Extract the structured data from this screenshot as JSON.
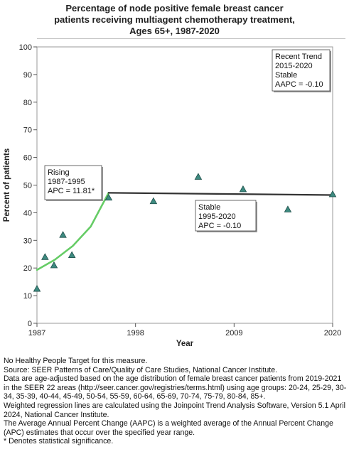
{
  "chart_data": {
    "type": "line",
    "title_lines": [
      "Percentage of node positive female breast cancer",
      "patients receiving multiagent chemotherapy treatment,",
      "Ages 65+,  1987-2020"
    ],
    "xlabel": "Year",
    "ylabel": "Percent of patients",
    "xlim": [
      1987,
      2020
    ],
    "ylim": [
      0,
      100
    ],
    "x_ticks": [
      1987,
      1998,
      2009,
      2020
    ],
    "y_ticks": [
      0,
      10,
      20,
      30,
      40,
      50,
      60,
      70,
      80,
      90,
      100
    ],
    "grid": false,
    "observed_points": [
      {
        "x": 1987.0,
        "y": 12.5
      },
      {
        "x": 1987.9,
        "y": 24.0
      },
      {
        "x": 1988.9,
        "y": 21.0
      },
      {
        "x": 1989.9,
        "y": 32.0
      },
      {
        "x": 1990.9,
        "y": 24.7
      },
      {
        "x": 1995.0,
        "y": 45.5
      },
      {
        "x": 2000.0,
        "y": 44.2
      },
      {
        "x": 2005.0,
        "y": 53.0
      },
      {
        "x": 2010.0,
        "y": 48.5
      },
      {
        "x": 2015.0,
        "y": 41.2
      },
      {
        "x": 2020.0,
        "y": 46.7
      }
    ],
    "segments": [
      {
        "color": "#66cc66",
        "points": [
          [
            1987,
            19.3
          ],
          [
            1989,
            23.0
          ],
          [
            1991,
            28.0
          ],
          [
            1993,
            35.0
          ],
          [
            1995,
            47.2
          ]
        ]
      },
      {
        "color": "#333333",
        "points": [
          [
            1995,
            47.2
          ],
          [
            2020,
            46.4
          ]
        ]
      }
    ],
    "annotations": [
      {
        "lines": [
          "Rising",
          "1987-1995",
          "APC = 11.81*"
        ]
      },
      {
        "lines": [
          "Stable",
          "1995-2020",
          "APC = -0.10"
        ]
      },
      {
        "lines": [
          "Recent Trend",
          "2015-2020",
          "Stable",
          "AAPC = -0.10"
        ]
      }
    ],
    "marker_color": "#3d8a80"
  },
  "footnotes": [
    "No Healthy People Target for this measure.",
    "Source: SEER Patterns of Care/Quality of Care Studies, National Cancer Institute.",
    "Data are age-adjusted based on the age distribution of female breast cancer patients from 2019-2021 in the SEER 22 areas (http://seer.cancer.gov/registries/terms.html) using age groups: 20-24, 25-29, 30-34, 35-39, 40-44, 45-49, 50-54, 55-59, 60-64, 65-69, 70-74, 75-79, 80-84, 85+.",
    "Weighted regression lines are calculated using the Joinpoint Trend Analysis Software, Version 5.1 April 2024, National Cancer Institute.",
    "The Average Annual Percent Change (AAPC) is a weighted average of the Annual Percent Change (APC) estimates that occur over the specified year range.",
    "* Denotes statistical significance."
  ]
}
